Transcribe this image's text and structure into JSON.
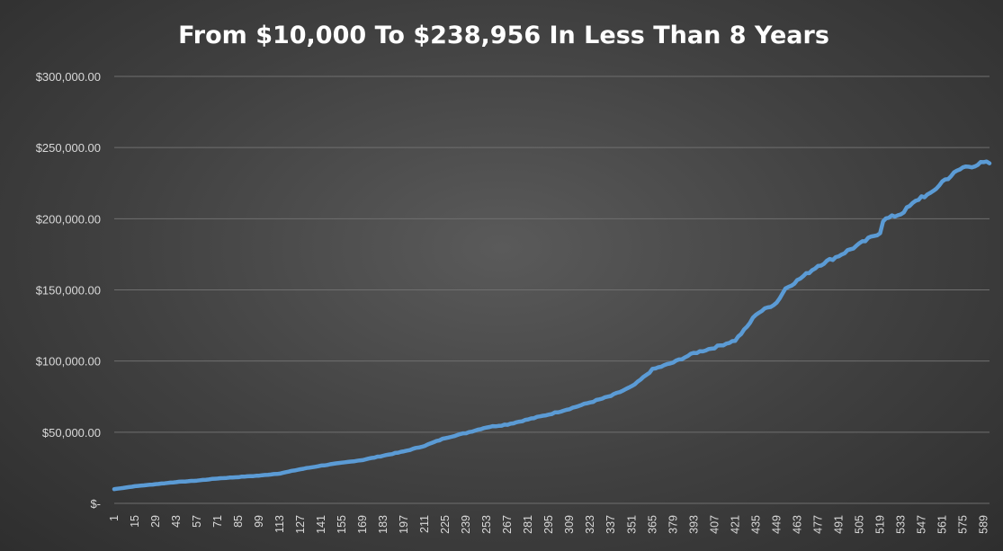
{
  "chart_data": {
    "type": "line",
    "title": "From $10,000 To $238,956 In Less Than 8 Years",
    "xlabel": "",
    "ylabel": "",
    "ylim": [
      0,
      300000
    ],
    "yticks": [
      0,
      50000,
      100000,
      150000,
      200000,
      250000,
      300000
    ],
    "ytick_labels": [
      "$-",
      "$50,000.00",
      "$100,000.00",
      "$150,000.00",
      "$200,000.00",
      "$250,000.00",
      "$300,000.00"
    ],
    "xlim": [
      1,
      593
    ],
    "xticks": [
      1,
      15,
      29,
      43,
      57,
      71,
      85,
      99,
      113,
      127,
      141,
      155,
      169,
      183,
      197,
      211,
      225,
      239,
      253,
      267,
      281,
      295,
      309,
      323,
      337,
      351,
      365,
      379,
      393,
      407,
      421,
      435,
      449,
      463,
      477,
      491,
      505,
      519,
      533,
      547,
      561,
      575,
      589
    ],
    "grid": true,
    "legend": "none",
    "colors": {
      "series": "#5b9bd5",
      "grid": "#6f6f6f",
      "text": "#d9d9d9",
      "title": "#ffffff"
    },
    "series": [
      {
        "x": [
          1,
          15,
          29,
          43,
          57,
          71,
          85,
          99,
          113,
          127,
          141,
          155,
          169,
          183,
          197,
          211,
          225,
          239,
          253,
          267,
          281,
          295,
          309,
          323,
          337,
          351,
          355,
          365,
          379,
          393,
          407,
          421,
          429,
          435,
          449,
          455,
          463,
          477,
          491,
          505,
          519,
          521,
          533,
          547,
          553,
          561,
          575,
          589,
          593
        ],
        "values": [
          10000,
          12000,
          13500,
          15000,
          16000,
          17500,
          18500,
          19500,
          21000,
          24000,
          26500,
          28500,
          30500,
          33500,
          36500,
          40500,
          46000,
          49500,
          53500,
          55500,
          59000,
          62500,
          66500,
          71000,
          75500,
          82000,
          85000,
          94000,
          99000,
          105500,
          109500,
          114500,
          124000,
          133000,
          141000,
          151000,
          156500,
          167000,
          174000,
          182000,
          190500,
          199000,
          203500,
          215500,
          217000,
          226000,
          236000,
          239000,
          238956
        ]
      }
    ]
  }
}
